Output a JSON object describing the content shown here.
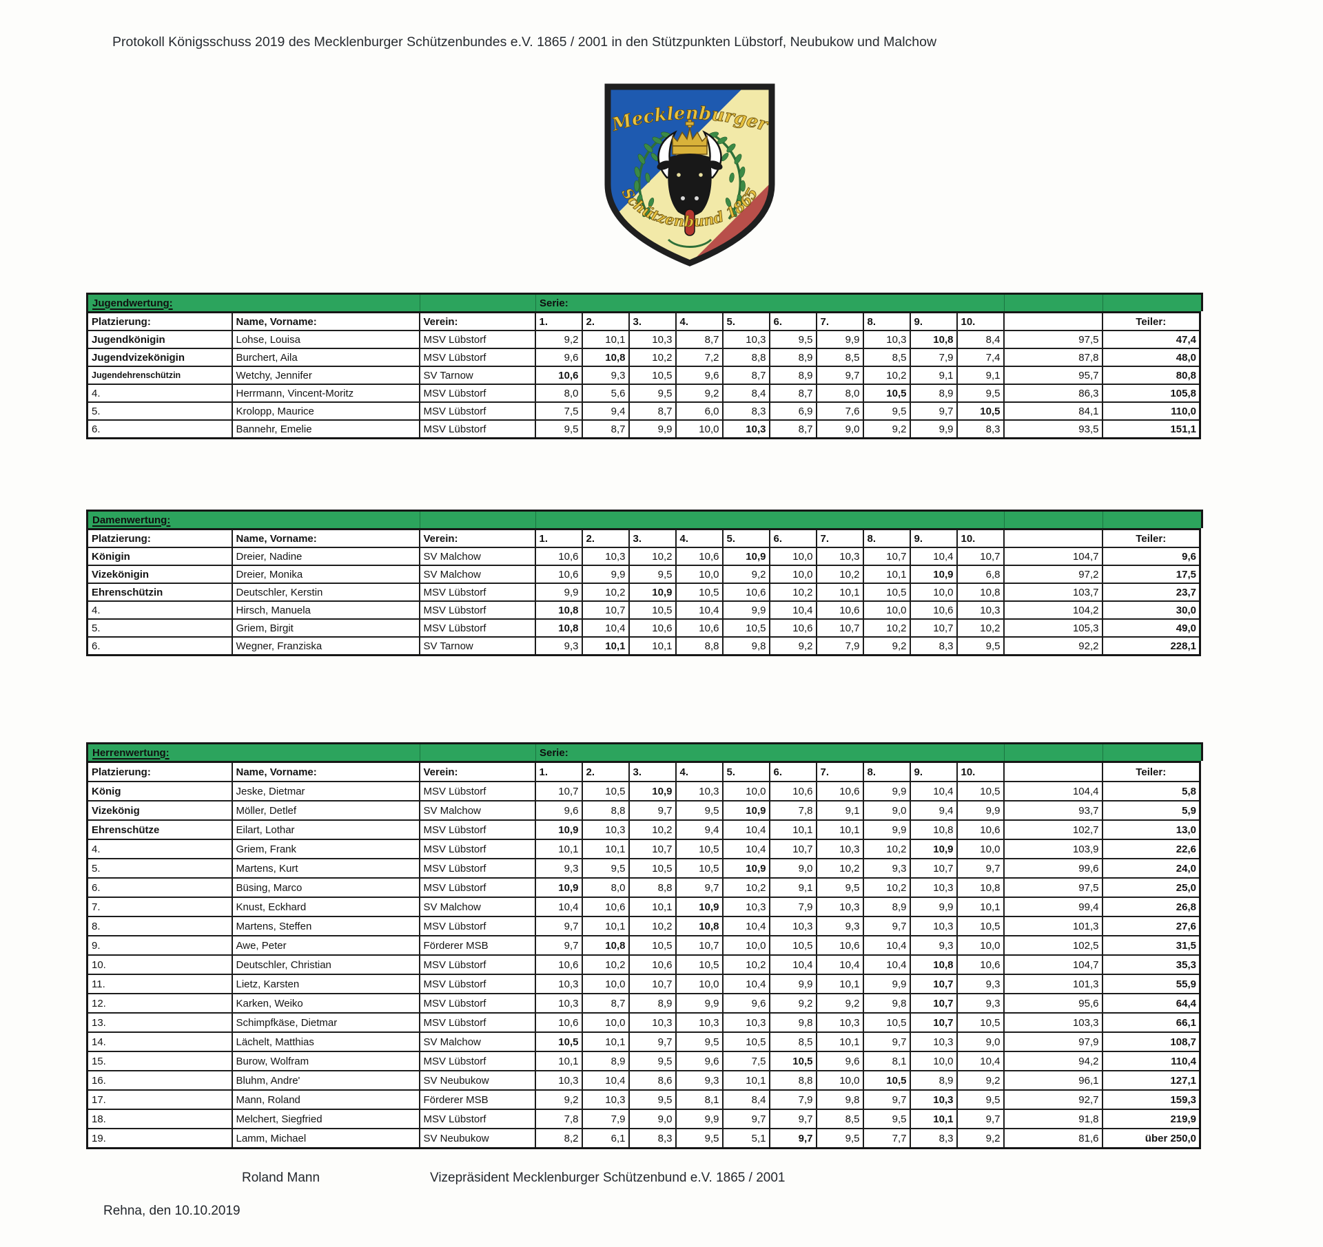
{
  "document": {
    "title": "Protokoll Königsschuss 2019 des Mecklenburger Schützenbundes e.V. 1865 / 2001 in den Stützpunkten Lübstorf, Neubukow und Malchow",
    "footer": {
      "signer_name": "Roland Mann",
      "signer_title": "Vizepräsident Mecklenburger Schützenbund e.V. 1865 / 2001",
      "place_date": "Rehna, den 10.10.2019"
    }
  },
  "logo": {
    "top_text": "Mecklenburger",
    "bottom_text": "Schützenbund 1865",
    "colors": {
      "blue": "#1e5ab0",
      "yellow": "#f2e9a8",
      "red": "#b84f4a",
      "wreath_green": "#2e6f38",
      "gold": "#e0ba3d",
      "black": "#181818"
    }
  },
  "colors": {
    "band_green": "#2ca45d",
    "border_dark": "#161616"
  },
  "table_headers": {
    "platzierung": "Platzierung:",
    "name": "Name, Vorname:",
    "verein": "Verein:",
    "serie_cols": [
      "1.",
      "2.",
      "3.",
      "4.",
      "5.",
      "6.",
      "7.",
      "8.",
      "9.",
      "10."
    ],
    "sum_header": "",
    "teiler": "Teiler:"
  },
  "tables": [
    {
      "title": "Jugendwertung:",
      "serie_label": "Serie:",
      "rows": [
        {
          "platz": "Jugendkönigin",
          "name": "Lohse, Louisa",
          "verein": "MSV Lübstorf",
          "serie": [
            "9,2",
            "10,1",
            "10,3",
            "8,7",
            "10,3",
            "9,5",
            "9,9",
            "10,3",
            "10,8",
            "8,4"
          ],
          "bold": 9,
          "summe": "97,5",
          "teiler": "47,4"
        },
        {
          "platz": "Jugendvizekönigin",
          "name": "Burchert, Aila",
          "verein": "MSV Lübstorf",
          "serie": [
            "9,6",
            "10,8",
            "10,2",
            "7,2",
            "8,8",
            "8,9",
            "8,5",
            "8,5",
            "7,9",
            "7,4"
          ],
          "bold": 2,
          "summe": "87,8",
          "teiler": "48,0"
        },
        {
          "platz": "Jugendehrenschützin",
          "name": "Wetchy, Jennifer",
          "verein": "SV Tarnow",
          "serie": [
            "10,6",
            "9,3",
            "10,5",
            "9,6",
            "8,7",
            "8,9",
            "9,7",
            "10,2",
            "9,1",
            "9,1"
          ],
          "bold": 1,
          "summe": "95,7",
          "teiler": "80,8"
        },
        {
          "platz": "4.",
          "name": "Herrmann, Vincent-Moritz",
          "verein": "MSV Lübstorf",
          "serie": [
            "8,0",
            "5,6",
            "9,5",
            "9,2",
            "8,4",
            "8,7",
            "8,0",
            "10,5",
            "8,9",
            "9,5"
          ],
          "bold": 8,
          "summe": "86,3",
          "teiler": "105,8"
        },
        {
          "platz": "5.",
          "name": "Krolopp, Maurice",
          "verein": "MSV Lübstorf",
          "serie": [
            "7,5",
            "9,4",
            "8,7",
            "6,0",
            "8,3",
            "6,9",
            "7,6",
            "9,5",
            "9,7",
            "10,5"
          ],
          "bold": 10,
          "summe": "84,1",
          "teiler": "110,0"
        },
        {
          "platz": "6.",
          "name": "Bannehr, Emelie",
          "verein": "MSV Lübstorf",
          "serie": [
            "9,5",
            "8,7",
            "9,9",
            "10,0",
            "10,3",
            "8,7",
            "9,0",
            "9,2",
            "9,9",
            "8,3"
          ],
          "bold": 5,
          "summe": "93,5",
          "teiler": "151,1"
        }
      ]
    },
    {
      "title": "Damenwertung:",
      "serie_label": "",
      "rows": [
        {
          "platz": "Königin",
          "name": "Dreier, Nadine",
          "verein": "SV Malchow",
          "serie": [
            "10,6",
            "10,3",
            "10,2",
            "10,6",
            "10,9",
            "10,0",
            "10,3",
            "10,7",
            "10,4",
            "10,7"
          ],
          "bold": 5,
          "summe": "104,7",
          "teiler": "9,6"
        },
        {
          "platz": "Vizekönigin",
          "name": "Dreier, Monika",
          "verein": "SV Malchow",
          "serie": [
            "10,6",
            "9,9",
            "9,5",
            "10,0",
            "9,2",
            "10,0",
            "10,2",
            "10,1",
            "10,9",
            "6,8"
          ],
          "bold": 9,
          "summe": "97,2",
          "teiler": "17,5"
        },
        {
          "platz": "Ehrenschützin",
          "name": "Deutschler, Kerstin",
          "verein": "MSV Lübstorf",
          "serie": [
            "9,9",
            "10,2",
            "10,9",
            "10,5",
            "10,6",
            "10,2",
            "10,1",
            "10,5",
            "10,0",
            "10,8"
          ],
          "bold": 3,
          "summe": "103,7",
          "teiler": "23,7"
        },
        {
          "platz": "4.",
          "name": "Hirsch, Manuela",
          "verein": "MSV Lübstorf",
          "serie": [
            "10,8",
            "10,7",
            "10,5",
            "10,4",
            "9,9",
            "10,4",
            "10,6",
            "10,0",
            "10,6",
            "10,3"
          ],
          "bold": 1,
          "summe": "104,2",
          "teiler": "30,0"
        },
        {
          "platz": "5.",
          "name": "Griem, Birgit",
          "verein": "MSV Lübstorf",
          "serie": [
            "10,8",
            "10,4",
            "10,6",
            "10,6",
            "10,5",
            "10,6",
            "10,7",
            "10,2",
            "10,7",
            "10,2"
          ],
          "bold": 1,
          "summe": "105,3",
          "teiler": "49,0"
        },
        {
          "platz": "6.",
          "name": "Wegner, Franziska",
          "verein": "SV Tarnow",
          "serie": [
            "9,3",
            "10,1",
            "10,1",
            "8,8",
            "9,8",
            "9,2",
            "7,9",
            "9,2",
            "8,3",
            "9,5"
          ],
          "bold": 2,
          "summe": "92,2",
          "teiler": "228,1"
        }
      ]
    },
    {
      "title": "Herrenwertung:",
      "serie_label": "Serie:",
      "rows": [
        {
          "platz": "König",
          "name": "Jeske, Dietmar",
          "verein": "MSV Lübstorf",
          "serie": [
            "10,7",
            "10,5",
            "10,9",
            "10,3",
            "10,0",
            "10,6",
            "10,6",
            "9,9",
            "10,4",
            "10,5"
          ],
          "bold": 3,
          "summe": "104,4",
          "teiler": "5,8"
        },
        {
          "platz": "Vizekönig",
          "name": "Möller, Detlef",
          "verein": "SV Malchow",
          "serie": [
            "9,6",
            "8,8",
            "9,7",
            "9,5",
            "10,9",
            "7,8",
            "9,1",
            "9,0",
            "9,4",
            "9,9"
          ],
          "bold": 5,
          "summe": "93,7",
          "teiler": "5,9"
        },
        {
          "platz": "Ehrenschütze",
          "name": "Eilart, Lothar",
          "verein": "MSV Lübstorf",
          "serie": [
            "10,9",
            "10,3",
            "10,2",
            "9,4",
            "10,4",
            "10,1",
            "10,1",
            "9,9",
            "10,8",
            "10,6"
          ],
          "bold": 1,
          "summe": "102,7",
          "teiler": "13,0"
        },
        {
          "platz": "4.",
          "name": "Griem, Frank",
          "verein": "MSV Lübstorf",
          "serie": [
            "10,1",
            "10,1",
            "10,7",
            "10,5",
            "10,4",
            "10,7",
            "10,3",
            "10,2",
            "10,9",
            "10,0"
          ],
          "bold": 9,
          "summe": "103,9",
          "teiler": "22,6"
        },
        {
          "platz": "5.",
          "name": "Martens, Kurt",
          "verein": "MSV Lübstorf",
          "serie": [
            "9,3",
            "9,5",
            "10,5",
            "10,5",
            "10,9",
            "9,0",
            "10,2",
            "9,3",
            "10,7",
            "9,7"
          ],
          "bold": 5,
          "summe": "99,6",
          "teiler": "24,0"
        },
        {
          "platz": "6.",
          "name": "Büsing, Marco",
          "verein": "MSV Lübstorf",
          "serie": [
            "10,9",
            "8,0",
            "8,8",
            "9,7",
            "10,2",
            "9,1",
            "9,5",
            "10,2",
            "10,3",
            "10,8"
          ],
          "bold": 1,
          "summe": "97,5",
          "teiler": "25,0"
        },
        {
          "platz": "7.",
          "name": "Knust, Eckhard",
          "verein": "SV Malchow",
          "serie": [
            "10,4",
            "10,6",
            "10,1",
            "10,9",
            "10,3",
            "7,9",
            "10,3",
            "8,9",
            "9,9",
            "10,1"
          ],
          "bold": 4,
          "summe": "99,4",
          "teiler": "26,8"
        },
        {
          "platz": "8.",
          "name": "Martens, Steffen",
          "verein": "MSV Lübstorf",
          "serie": [
            "9,7",
            "10,1",
            "10,2",
            "10,8",
            "10,4",
            "10,3",
            "9,3",
            "9,7",
            "10,3",
            "10,5"
          ],
          "bold": 4,
          "summe": "101,3",
          "teiler": "27,6"
        },
        {
          "platz": "9.",
          "name": "Awe, Peter",
          "verein": "Förderer MSB",
          "serie": [
            "9,7",
            "10,8",
            "10,5",
            "10,7",
            "10,0",
            "10,5",
            "10,6",
            "10,4",
            "9,3",
            "10,0"
          ],
          "bold": 2,
          "summe": "102,5",
          "teiler": "31,5"
        },
        {
          "platz": "10.",
          "name": "Deutschler, Christian",
          "verein": "MSV Lübstorf",
          "serie": [
            "10,6",
            "10,2",
            "10,6",
            "10,5",
            "10,2",
            "10,4",
            "10,4",
            "10,4",
            "10,8",
            "10,6"
          ],
          "bold": 9,
          "summe": "104,7",
          "teiler": "35,3"
        },
        {
          "platz": "11.",
          "name": "Lietz, Karsten",
          "verein": "MSV Lübstorf",
          "serie": [
            "10,3",
            "10,0",
            "10,7",
            "10,0",
            "10,4",
            "9,9",
            "10,1",
            "9,9",
            "10,7",
            "9,3"
          ],
          "bold": 9,
          "summe": "101,3",
          "teiler": "55,9"
        },
        {
          "platz": "12.",
          "name": "Karken, Weiko",
          "verein": "MSV Lübstorf",
          "serie": [
            "10,3",
            "8,7",
            "8,9",
            "9,9",
            "9,6",
            "9,2",
            "9,2",
            "9,8",
            "10,7",
            "9,3"
          ],
          "bold": 9,
          "summe": "95,6",
          "teiler": "64,4"
        },
        {
          "platz": "13.",
          "name": "Schimpfkäse, Dietmar",
          "verein": "MSV Lübstorf",
          "serie": [
            "10,6",
            "10,0",
            "10,3",
            "10,3",
            "10,3",
            "9,8",
            "10,3",
            "10,5",
            "10,7",
            "10,5"
          ],
          "bold": 9,
          "summe": "103,3",
          "teiler": "66,1"
        },
        {
          "platz": "14.",
          "name": "Lächelt, Matthias",
          "verein": "SV Malchow",
          "serie": [
            "10,5",
            "10,1",
            "9,7",
            "9,5",
            "10,5",
            "8,5",
            "10,1",
            "9,7",
            "10,3",
            "9,0"
          ],
          "bold": 1,
          "summe": "97,9",
          "teiler": "108,7"
        },
        {
          "platz": "15.",
          "name": "Burow, Wolfram",
          "verein": "MSV Lübstorf",
          "serie": [
            "10,1",
            "8,9",
            "9,5",
            "9,6",
            "7,5",
            "10,5",
            "9,6",
            "8,1",
            "10,0",
            "10,4"
          ],
          "bold": 6,
          "summe": "94,2",
          "teiler": "110,4"
        },
        {
          "platz": "16.",
          "name": "Bluhm, Andre'",
          "verein": "SV Neubukow",
          "serie": [
            "10,3",
            "10,4",
            "8,6",
            "9,3",
            "10,1",
            "8,8",
            "10,0",
            "10,5",
            "8,9",
            "9,2"
          ],
          "bold": 8,
          "summe": "96,1",
          "teiler": "127,1"
        },
        {
          "platz": "17.",
          "name": "Mann, Roland",
          "verein": "Förderer MSB",
          "serie": [
            "9,2",
            "10,3",
            "9,5",
            "8,1",
            "8,4",
            "7,9",
            "9,8",
            "9,7",
            "10,3",
            "9,5"
          ],
          "bold": 9,
          "summe": "92,7",
          "teiler": "159,3"
        },
        {
          "platz": "18.",
          "name": "Melchert, Siegfried",
          "verein": "MSV Lübstorf",
          "serie": [
            "7,8",
            "7,9",
            "9,0",
            "9,9",
            "9,7",
            "9,7",
            "8,5",
            "9,5",
            "10,1",
            "9,7"
          ],
          "bold": 9,
          "summe": "91,8",
          "teiler": "219,9"
        },
        {
          "platz": "19.",
          "name": "Lamm, Michael",
          "verein": "SV Neubukow",
          "serie": [
            "8,2",
            "6,1",
            "8,3",
            "9,5",
            "5,1",
            "9,7",
            "9,5",
            "7,7",
            "8,3",
            "9,2"
          ],
          "bold": 6,
          "summe": "81,6",
          "teiler": "über 250,0"
        }
      ]
    }
  ]
}
